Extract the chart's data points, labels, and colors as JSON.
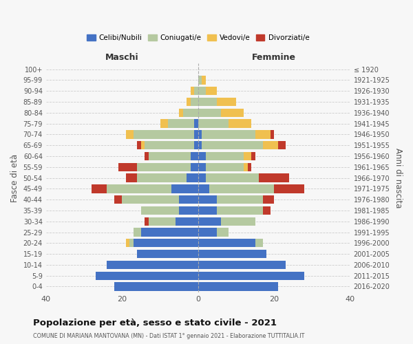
{
  "age_groups": [
    "0-4",
    "5-9",
    "10-14",
    "15-19",
    "20-24",
    "25-29",
    "30-34",
    "35-39",
    "40-44",
    "45-49",
    "50-54",
    "55-59",
    "60-64",
    "65-69",
    "70-74",
    "75-79",
    "80-84",
    "85-89",
    "90-94",
    "95-99",
    "100+"
  ],
  "birth_years": [
    "2016-2020",
    "2011-2015",
    "2006-2010",
    "2001-2005",
    "1996-2000",
    "1991-1995",
    "1986-1990",
    "1981-1985",
    "1976-1980",
    "1971-1975",
    "1966-1970",
    "1961-1965",
    "1956-1960",
    "1951-1955",
    "1946-1950",
    "1941-1945",
    "1936-1940",
    "1931-1935",
    "1926-1930",
    "1921-1925",
    "≤ 1920"
  ],
  "colors": {
    "celibe": "#4472c4",
    "coniugato": "#b5c9a0",
    "vedovo": "#f0c050",
    "divorziato": "#c0392b"
  },
  "maschi": {
    "celibe": [
      22,
      27,
      24,
      16,
      17,
      15,
      6,
      5,
      5,
      7,
      3,
      2,
      2,
      1,
      1,
      1,
      0,
      0,
      0,
      0,
      0
    ],
    "coniugato": [
      0,
      0,
      0,
      0,
      1,
      2,
      7,
      10,
      15,
      17,
      13,
      14,
      11,
      13,
      16,
      7,
      4,
      2,
      1,
      0,
      0
    ],
    "vedovo": [
      0,
      0,
      0,
      0,
      1,
      0,
      0,
      0,
      0,
      0,
      0,
      0,
      0,
      1,
      2,
      2,
      1,
      1,
      1,
      0,
      0
    ],
    "divorziato": [
      0,
      0,
      0,
      0,
      0,
      0,
      1,
      0,
      2,
      4,
      3,
      5,
      1,
      1,
      0,
      0,
      0,
      0,
      0,
      0,
      0
    ]
  },
  "femmine": {
    "nubile": [
      21,
      28,
      23,
      18,
      15,
      5,
      6,
      5,
      5,
      3,
      2,
      2,
      2,
      1,
      1,
      0,
      0,
      0,
      0,
      0,
      0
    ],
    "coniugata": [
      0,
      0,
      0,
      0,
      2,
      3,
      9,
      12,
      12,
      17,
      14,
      10,
      10,
      16,
      14,
      8,
      6,
      5,
      2,
      1,
      0
    ],
    "vedova": [
      0,
      0,
      0,
      0,
      0,
      0,
      0,
      0,
      0,
      0,
      0,
      1,
      2,
      4,
      4,
      6,
      6,
      5,
      3,
      1,
      0
    ],
    "divorziata": [
      0,
      0,
      0,
      0,
      0,
      0,
      0,
      2,
      3,
      8,
      8,
      1,
      1,
      2,
      1,
      0,
      0,
      0,
      0,
      0,
      0
    ]
  },
  "xlim": 40,
  "title": "Popolazione per età, sesso e stato civile - 2021",
  "subtitle": "COMUNE DI MARIANA MANTOVANA (MN) - Dati ISTAT 1° gennaio 2021 - Elaborazione TUTTITALIA.IT",
  "ylabel_left": "Fasce di età",
  "ylabel_right": "Anni di nascita",
  "xlabel_maschi": "Maschi",
  "xlabel_femmine": "Femmine",
  "legend_labels": [
    "Celibi/Nubili",
    "Coniugati/e",
    "Vedovi/e",
    "Divorziati/e"
  ],
  "background_color": "#f7f7f7"
}
